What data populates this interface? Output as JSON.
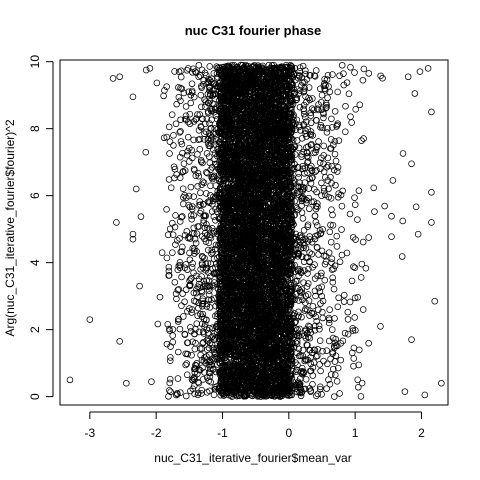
{
  "chart_data": {
    "type": "scatter",
    "title": "nuc C31 fourier phase",
    "xlabel": "nuc_C31_iterative_fourier$mean_var",
    "ylabel": "Arg(nuc_C31_iterative_fourier$fourier)^2",
    "xlim": [
      -3.45,
      2.4
    ],
    "ylim": [
      -0.25,
      10.05
    ],
    "x_ticks": [
      -3,
      -2,
      -1,
      0,
      1,
      2
    ],
    "y_ticks": [
      0,
      2,
      4,
      6,
      8,
      10
    ],
    "marker": "open-circle",
    "grid": false,
    "legend": "none",
    "notes_visible": {
      "dense_core_x_range": [
        -1.05,
        0.05
      ],
      "dense_band_x_range": [
        -1.6,
        1.5
      ],
      "y_range": [
        0,
        9.9
      ]
    },
    "sample_points": [
      {
        "x": -3.3,
        "y": 0.5
      },
      {
        "x": -3.0,
        "y": 2.3
      },
      {
        "x": -2.65,
        "y": 9.5
      },
      {
        "x": -2.55,
        "y": 9.55
      },
      {
        "x": -2.6,
        "y": 5.2
      },
      {
        "x": -2.55,
        "y": 1.65
      },
      {
        "x": -2.45,
        "y": 0.4
      },
      {
        "x": -2.35,
        "y": 4.7
      },
      {
        "x": -2.35,
        "y": 4.85
      },
      {
        "x": -2.35,
        "y": 8.95
      },
      {
        "x": -2.3,
        "y": 6.2
      },
      {
        "x": -2.25,
        "y": 3.3
      },
      {
        "x": -2.15,
        "y": 9.75
      },
      {
        "x": 2.2,
        "y": 2.85
      },
      {
        "x": 2.15,
        "y": 8.5
      },
      {
        "x": 2.1,
        "y": 9.8
      },
      {
        "x": 2.05,
        "y": 0.05
      },
      {
        "x": 2.3,
        "y": 0.4
      },
      {
        "x": 2.15,
        "y": 5.2
      },
      {
        "x": 2.15,
        "y": 6.1
      },
      {
        "x": 1.9,
        "y": 9.05
      },
      {
        "x": 1.85,
        "y": 1.7
      },
      {
        "x": 1.85,
        "y": 6.95
      },
      {
        "x": 1.8,
        "y": 9.55
      },
      {
        "x": 1.75,
        "y": 0.15
      },
      {
        "x": 1.95,
        "y": 4.85
      }
    ]
  }
}
